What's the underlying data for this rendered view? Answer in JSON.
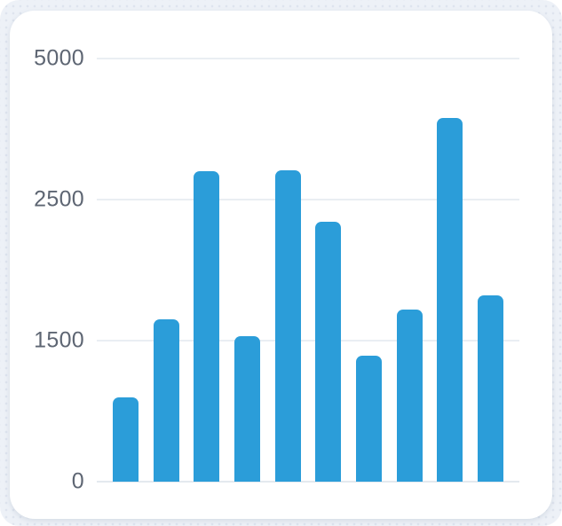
{
  "page": {
    "background": "#ffffff"
  },
  "colors": {
    "bar": "#2b9dd9",
    "gridline": "#eaeef3",
    "zero_line": "#e4e9ef",
    "axis_label": "#5e6673",
    "dotted_bg": "#edf1f7",
    "dot": "#dee4ee",
    "card_bg": "#ffffff"
  },
  "chart_data": {
    "type": "bar",
    "title": "",
    "xlabel": "",
    "ylabel": "",
    "values": [
      900,
      1650,
      3000,
      1530,
      3020,
      2340,
      1340,
      1720,
      3950,
      1820
    ],
    "x_tick_labels": [],
    "y_ticks": [
      0,
      1500,
      2500,
      5000
    ],
    "y_tick_labels": [
      "0",
      "1500",
      "2500",
      "5000"
    ],
    "ylim": [
      0,
      5000
    ],
    "grid": "horizontal",
    "legend": "none",
    "axis_note": "y-axis ticks are equally spaced (piecewise-linear scale)"
  }
}
